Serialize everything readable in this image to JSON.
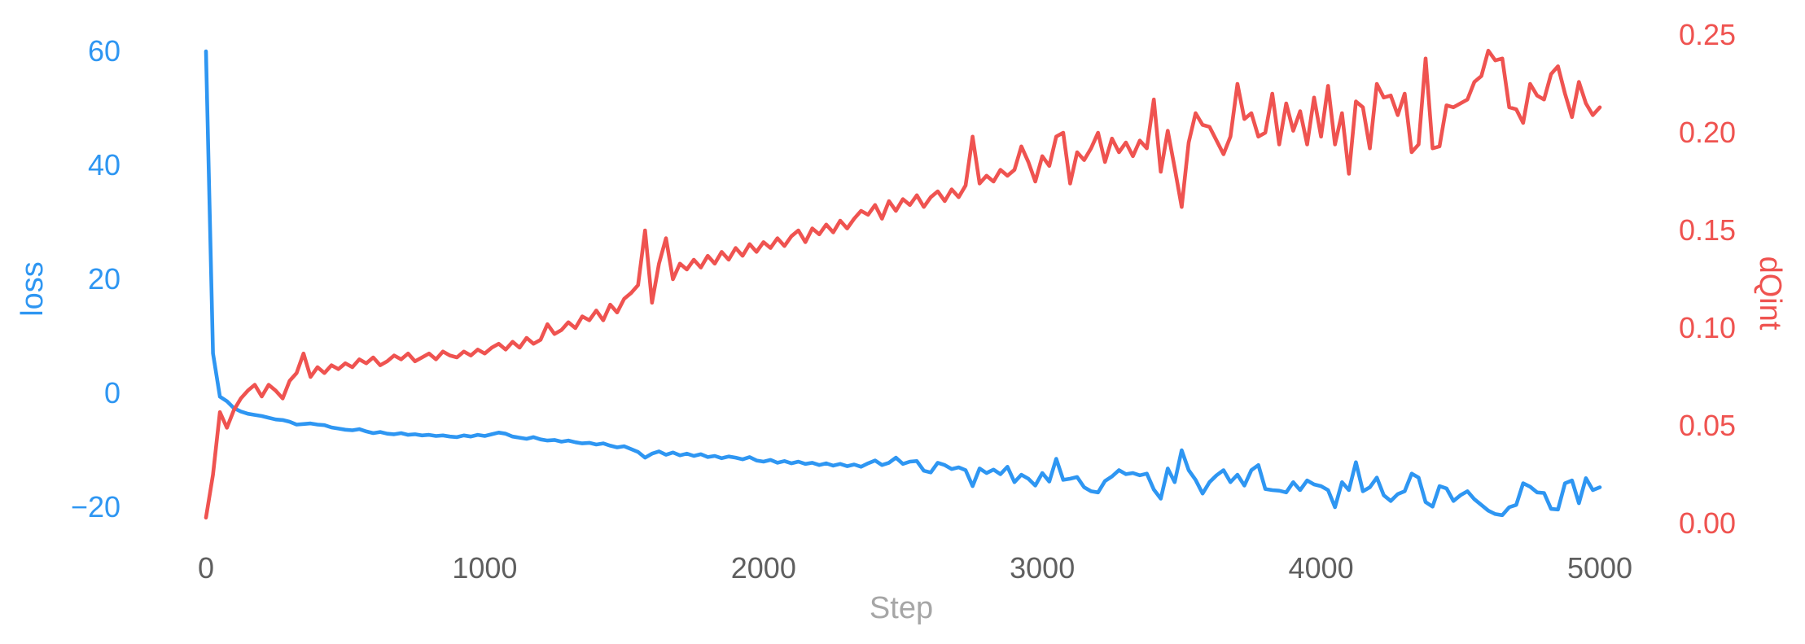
{
  "styles": {
    "background": "#ffffff",
    "loss_color": "#2e96f2",
    "dqint_color": "#ef5350",
    "x_tick_color": "#5f5f5f",
    "x_title_color": "#a6a6a6"
  },
  "chart_data": {
    "type": "line",
    "title": "",
    "grid": false,
    "legend": "none",
    "x": {
      "label": "Step",
      "ticks": [
        "0",
        "1000",
        "2000",
        "3000",
        "4000",
        "5000"
      ],
      "tick_values": [
        0,
        1000,
        2000,
        3000,
        4000,
        5000
      ],
      "range": [
        0,
        5000
      ]
    },
    "left_axis": {
      "title": "loss",
      "color": "#2e96f2",
      "ticks": [
        "60",
        "40",
        "20",
        "0",
        "−20"
      ],
      "tick_values": [
        60,
        40,
        20,
        0,
        -20
      ],
      "range": [
        -20,
        60
      ]
    },
    "right_axis": {
      "title": "dQint",
      "color": "#ef5350",
      "ticks": [
        "0.25",
        "0.20",
        "0.15",
        "0.10",
        "0.05",
        "0.00"
      ],
      "tick_values": [
        0.25,
        0.2,
        0.15,
        0.1,
        0.05,
        0.0
      ],
      "range": [
        0.0,
        0.25
      ]
    },
    "series": [
      {
        "name": "loss",
        "axis": "left",
        "color": "#2e96f2",
        "x_start": 0,
        "x_step": 25,
        "values": [
          60,
          7.0,
          -0.6,
          -1.4,
          -2.6,
          -3.2,
          -3.6,
          -3.8,
          -4.0,
          -4.3,
          -4.6,
          -4.7,
          -5.0,
          -5.5,
          -5.4,
          -5.3,
          -5.5,
          -5.6,
          -6.0,
          -6.2,
          -6.4,
          -6.5,
          -6.3,
          -6.7,
          -7.0,
          -6.8,
          -7.1,
          -7.2,
          -7.0,
          -7.3,
          -7.2,
          -7.4,
          -7.3,
          -7.5,
          -7.4,
          -7.6,
          -7.7,
          -7.4,
          -7.6,
          -7.3,
          -7.5,
          -7.2,
          -6.9,
          -7.1,
          -7.6,
          -7.8,
          -8.0,
          -7.7,
          -8.1,
          -8.3,
          -8.2,
          -8.5,
          -8.3,
          -8.6,
          -8.8,
          -8.7,
          -9.0,
          -8.8,
          -9.2,
          -9.5,
          -9.3,
          -9.8,
          -10.3,
          -11.3,
          -10.6,
          -10.2,
          -10.8,
          -10.4,
          -10.9,
          -10.6,
          -11.0,
          -10.7,
          -11.2,
          -11.0,
          -11.4,
          -11.1,
          -11.3,
          -11.6,
          -11.2,
          -11.8,
          -12.0,
          -11.7,
          -12.2,
          -11.9,
          -12.3,
          -12.0,
          -12.4,
          -12.2,
          -12.6,
          -12.3,
          -12.7,
          -12.4,
          -12.8,
          -12.5,
          -12.9,
          -12.3,
          -11.8,
          -12.6,
          -12.2,
          -11.3,
          -12.4,
          -12.0,
          -11.9,
          -13.6,
          -13.9,
          -12.2,
          -12.6,
          -13.3,
          -13.0,
          -13.5,
          -16.3,
          -13.2,
          -14.0,
          -13.4,
          -14.2,
          -12.9,
          -15.6,
          -14.3,
          -15.0,
          -16.2,
          -14.0,
          -15.5,
          -11.5,
          -15.2,
          -15.0,
          -14.7,
          -16.5,
          -17.2,
          -17.4,
          -15.4,
          -14.6,
          -13.5,
          -14.2,
          -14.0,
          -14.4,
          -14.1,
          -16.9,
          -18.5,
          -13.2,
          -15.6,
          -10.0,
          -13.5,
          -15.2,
          -17.6,
          -15.6,
          -14.4,
          -13.5,
          -15.6,
          -14.3,
          -16.2,
          -13.5,
          -12.6,
          -16.8,
          -17.0,
          -17.1,
          -17.4,
          -15.6,
          -17.0,
          -15.3,
          -16.0,
          -16.3,
          -17.0,
          -20.0,
          -15.6,
          -17.0,
          -12.1,
          -17.2,
          -16.5,
          -14.8,
          -17.9,
          -18.9,
          -17.7,
          -17.2,
          -14.1,
          -14.8,
          -19.1,
          -19.9,
          -16.3,
          -16.7,
          -18.9,
          -17.9,
          -17.2,
          -18.6,
          -19.6,
          -20.6,
          -21.2,
          -21.4,
          -20.0,
          -19.6,
          -15.8,
          -16.4,
          -17.4,
          -17.5,
          -20.3,
          -20.4,
          -15.8,
          -15.3,
          -19.3,
          -14.9,
          -17.0,
          -16.5
        ]
      },
      {
        "name": "dQint",
        "axis": "right",
        "color": "#ef5350",
        "x_start": 0,
        "x_step": 25,
        "values": [
          0.003,
          0.025,
          0.057,
          0.049,
          0.058,
          0.064,
          0.068,
          0.071,
          0.065,
          0.071,
          0.068,
          0.064,
          0.073,
          0.077,
          0.087,
          0.075,
          0.08,
          0.077,
          0.081,
          0.079,
          0.082,
          0.08,
          0.084,
          0.082,
          0.085,
          0.081,
          0.083,
          0.086,
          0.084,
          0.087,
          0.083,
          0.085,
          0.087,
          0.084,
          0.088,
          0.086,
          0.085,
          0.088,
          0.086,
          0.089,
          0.087,
          0.09,
          0.092,
          0.089,
          0.093,
          0.09,
          0.095,
          0.092,
          0.094,
          0.102,
          0.097,
          0.099,
          0.103,
          0.1,
          0.106,
          0.104,
          0.109,
          0.104,
          0.112,
          0.108,
          0.115,
          0.118,
          0.122,
          0.15,
          0.113,
          0.133,
          0.146,
          0.125,
          0.133,
          0.13,
          0.135,
          0.131,
          0.137,
          0.133,
          0.139,
          0.135,
          0.141,
          0.137,
          0.143,
          0.139,
          0.144,
          0.141,
          0.146,
          0.142,
          0.147,
          0.15,
          0.144,
          0.151,
          0.148,
          0.153,
          0.149,
          0.155,
          0.151,
          0.156,
          0.16,
          0.158,
          0.163,
          0.156,
          0.165,
          0.16,
          0.166,
          0.163,
          0.168,
          0.162,
          0.167,
          0.17,
          0.165,
          0.171,
          0.167,
          0.173,
          0.198,
          0.174,
          0.178,
          0.175,
          0.181,
          0.178,
          0.181,
          0.193,
          0.185,
          0.175,
          0.188,
          0.183,
          0.198,
          0.2,
          0.174,
          0.19,
          0.186,
          0.192,
          0.2,
          0.185,
          0.197,
          0.19,
          0.195,
          0.188,
          0.196,
          0.192,
          0.217,
          0.18,
          0.201,
          0.182,
          0.162,
          0.195,
          0.21,
          0.204,
          0.203,
          0.196,
          0.189,
          0.198,
          0.225,
          0.207,
          0.21,
          0.198,
          0.2,
          0.22,
          0.194,
          0.215,
          0.201,
          0.211,
          0.194,
          0.218,
          0.198,
          0.224,
          0.194,
          0.21,
          0.179,
          0.216,
          0.213,
          0.192,
          0.225,
          0.218,
          0.219,
          0.209,
          0.22,
          0.19,
          0.194,
          0.238,
          0.192,
          0.193,
          0.214,
          0.213,
          0.215,
          0.217,
          0.226,
          0.229,
          0.242,
          0.237,
          0.238,
          0.213,
          0.212,
          0.205,
          0.225,
          0.219,
          0.217,
          0.23,
          0.234,
          0.22,
          0.208,
          0.226,
          0.215,
          0.209,
          0.213
        ]
      }
    ]
  }
}
